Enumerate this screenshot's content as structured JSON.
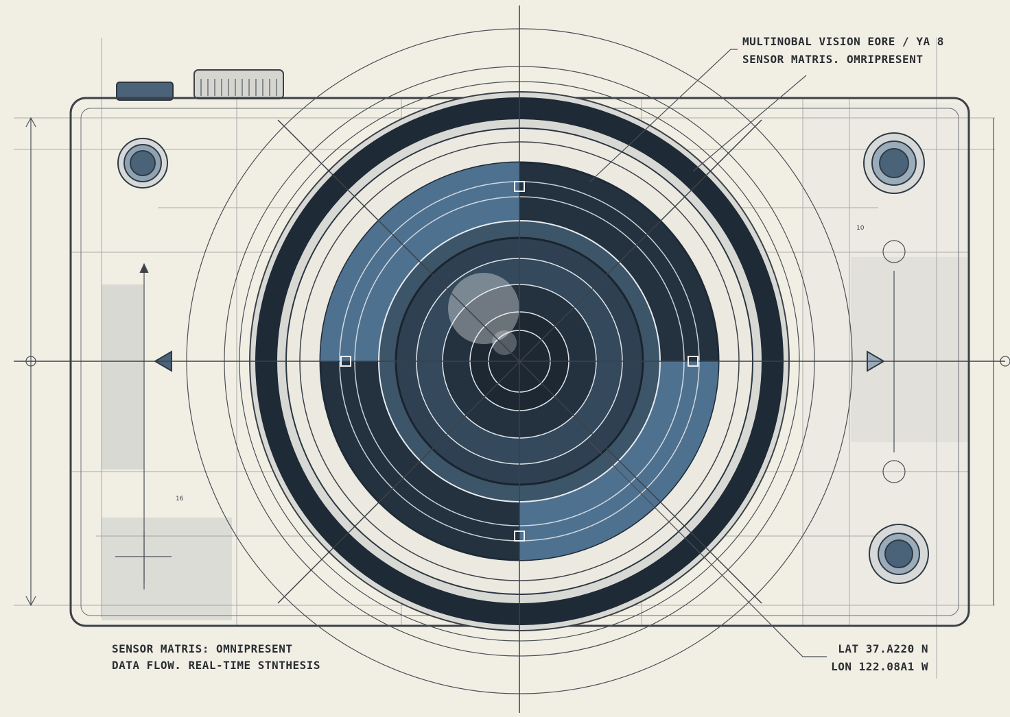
{
  "annotations": {
    "top_right": [
      "MULTINOBAL VISION EORE / YA 8",
      "SENSOR MATRIS. OMRIPRESENT"
    ],
    "bottom_left": [
      "SENSOR MATRIS: OMNIPRESENT",
      "DATA FLOW. REAL-TIME STNTHESIS"
    ],
    "bottom_right": [
      "LAT 37.A220 N",
      "LON 122.08A1 W"
    ]
  },
  "small_labels": [
    "10",
    "16"
  ]
}
